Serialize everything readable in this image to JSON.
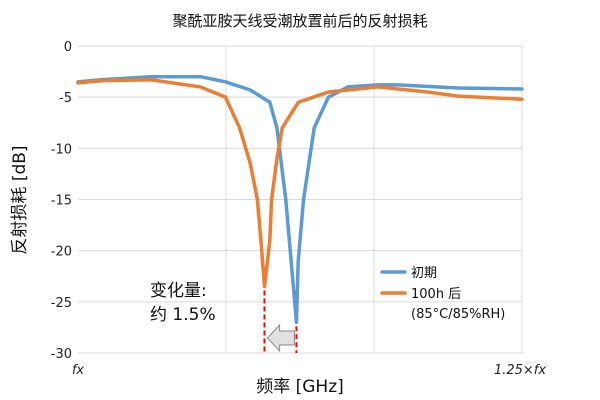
{
  "chart_data": {
    "type": "line",
    "title": "聚酰亚胺天线受潮放置前后的反射损耗",
    "xlabel": "频率 [GHz]",
    "ylabel": "反射损耗 [dB]",
    "xlim": [
      1.0,
      1.25
    ],
    "ylim": [
      -30,
      0
    ],
    "x_tick_labels": [
      "fx",
      "1.25×fx"
    ],
    "y_ticks": [
      0,
      -5,
      -10,
      -15,
      -20,
      -25,
      -30
    ],
    "grid": true,
    "legend_position": "bottom-right",
    "series": [
      {
        "name": "初期",
        "color": "#5b9bd5",
        "x": [
          1.0,
          1.013,
          1.041,
          1.069,
          1.083,
          1.097,
          1.108,
          1.112,
          1.117,
          1.12,
          1.123,
          1.124,
          1.127,
          1.133,
          1.141,
          1.152,
          1.169,
          1.18,
          1.214,
          1.25
        ],
        "y": [
          -3.5,
          -3.3,
          -3.0,
          -3.0,
          -3.5,
          -4.3,
          -5.5,
          -8.0,
          -15.0,
          -21.0,
          -27.0,
          -21.0,
          -15.0,
          -8.0,
          -5.0,
          -4.0,
          -3.8,
          -3.8,
          -4.1,
          -4.2
        ]
      },
      {
        "name": "100h 后",
        "color": "#ed7d31",
        "x": [
          1.0,
          1.013,
          1.041,
          1.069,
          1.083,
          1.091,
          1.097,
          1.101,
          1.103,
          1.105,
          1.108,
          1.109,
          1.112,
          1.115,
          1.124,
          1.141,
          1.169,
          1.197,
          1.214,
          1.25
        ],
        "y": [
          -3.6,
          -3.4,
          -3.3,
          -4.0,
          -5.0,
          -8.0,
          -11.5,
          -15.0,
          -19.0,
          -23.5,
          -19.0,
          -15.0,
          -11.0,
          -8.0,
          -5.5,
          -4.5,
          -4.0,
          -4.5,
          -4.9,
          -5.2
        ]
      }
    ],
    "legend_note": "(85°C/85%RH)",
    "annotation": {
      "line1": "变化量:",
      "line2": "约 1.5%",
      "marker_color": "#ff0000",
      "arrow_direction": "left"
    }
  }
}
